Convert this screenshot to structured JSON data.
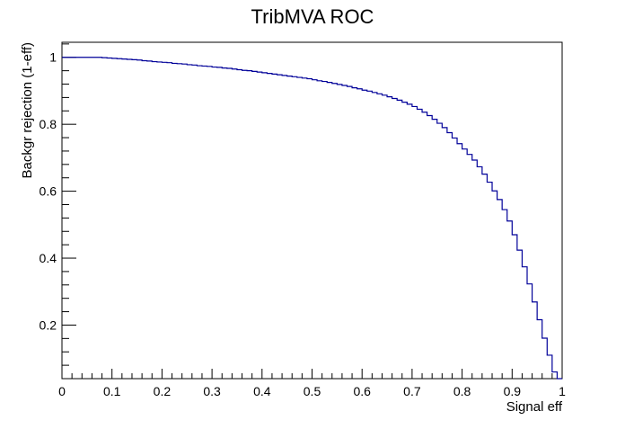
{
  "chart_data": {
    "type": "line",
    "title": "TribMVA ROC",
    "xlabel": "Signal eff",
    "ylabel": "Backgr rejection (1-eff)",
    "xlim": [
      0,
      1
    ],
    "ylim": [
      0.04,
      1.045
    ],
    "x_ticks": [
      "0",
      "0.1",
      "0.2",
      "0.3",
      "0.4",
      "0.5",
      "0.6",
      "0.7",
      "0.8",
      "0.9",
      "1"
    ],
    "y_ticks": [
      "0.2",
      "0.4",
      "0.6",
      "0.8",
      "1"
    ],
    "line_color": "#000099",
    "grid": false,
    "legend": "none",
    "step": true,
    "series": [
      {
        "x": [
          0,
          0.01,
          0.02,
          0.03,
          0.04,
          0.05,
          0.06,
          0.07,
          0.08,
          0.09,
          0.1,
          0.11,
          0.12,
          0.13,
          0.14,
          0.15,
          0.16,
          0.17,
          0.18,
          0.19,
          0.2,
          0.21,
          0.22,
          0.23,
          0.24,
          0.25,
          0.26,
          0.27,
          0.28,
          0.29,
          0.3,
          0.31,
          0.32,
          0.33,
          0.34,
          0.35,
          0.36,
          0.37,
          0.38,
          0.39,
          0.4,
          0.41,
          0.42,
          0.43,
          0.44,
          0.45,
          0.46,
          0.47,
          0.48,
          0.49,
          0.5,
          0.51,
          0.52,
          0.53,
          0.54,
          0.55,
          0.56,
          0.57,
          0.58,
          0.59,
          0.6,
          0.61,
          0.62,
          0.63,
          0.64,
          0.65,
          0.66,
          0.67,
          0.68,
          0.69,
          0.7,
          0.71,
          0.72,
          0.73,
          0.74,
          0.75,
          0.76,
          0.77,
          0.78,
          0.79,
          0.8,
          0.81,
          0.82,
          0.83,
          0.84,
          0.85,
          0.86,
          0.87,
          0.88,
          0.89,
          0.9,
          0.91,
          0.92,
          0.93,
          0.94,
          0.95,
          0.96,
          0.97,
          0.98,
          0.99,
          1.0
        ],
        "values": [
          1.0,
          1.0,
          1.0,
          1.0,
          1.0,
          1.0,
          1.0,
          1.0,
          0.999,
          0.998,
          0.997,
          0.996,
          0.995,
          0.994,
          0.993,
          0.992,
          0.99,
          0.989,
          0.987,
          0.986,
          0.985,
          0.984,
          0.982,
          0.981,
          0.98,
          0.978,
          0.977,
          0.975,
          0.974,
          0.973,
          0.971,
          0.97,
          0.968,
          0.967,
          0.965,
          0.963,
          0.961,
          0.96,
          0.958,
          0.956,
          0.954,
          0.952,
          0.95,
          0.948,
          0.946,
          0.944,
          0.942,
          0.94,
          0.938,
          0.936,
          0.933,
          0.93,
          0.928,
          0.925,
          0.922,
          0.919,
          0.916,
          0.913,
          0.909,
          0.906,
          0.902,
          0.899,
          0.895,
          0.891,
          0.887,
          0.882,
          0.877,
          0.872,
          0.866,
          0.86,
          0.853,
          0.845,
          0.836,
          0.826,
          0.815,
          0.803,
          0.79,
          0.775,
          0.759,
          0.742,
          0.726,
          0.71,
          0.693,
          0.673,
          0.651,
          0.627,
          0.601,
          0.575,
          0.545,
          0.511,
          0.47,
          0.424,
          0.374,
          0.323,
          0.269,
          0.216,
          0.161,
          0.11,
          0.06,
          0.03,
          0.0
        ]
      }
    ]
  }
}
